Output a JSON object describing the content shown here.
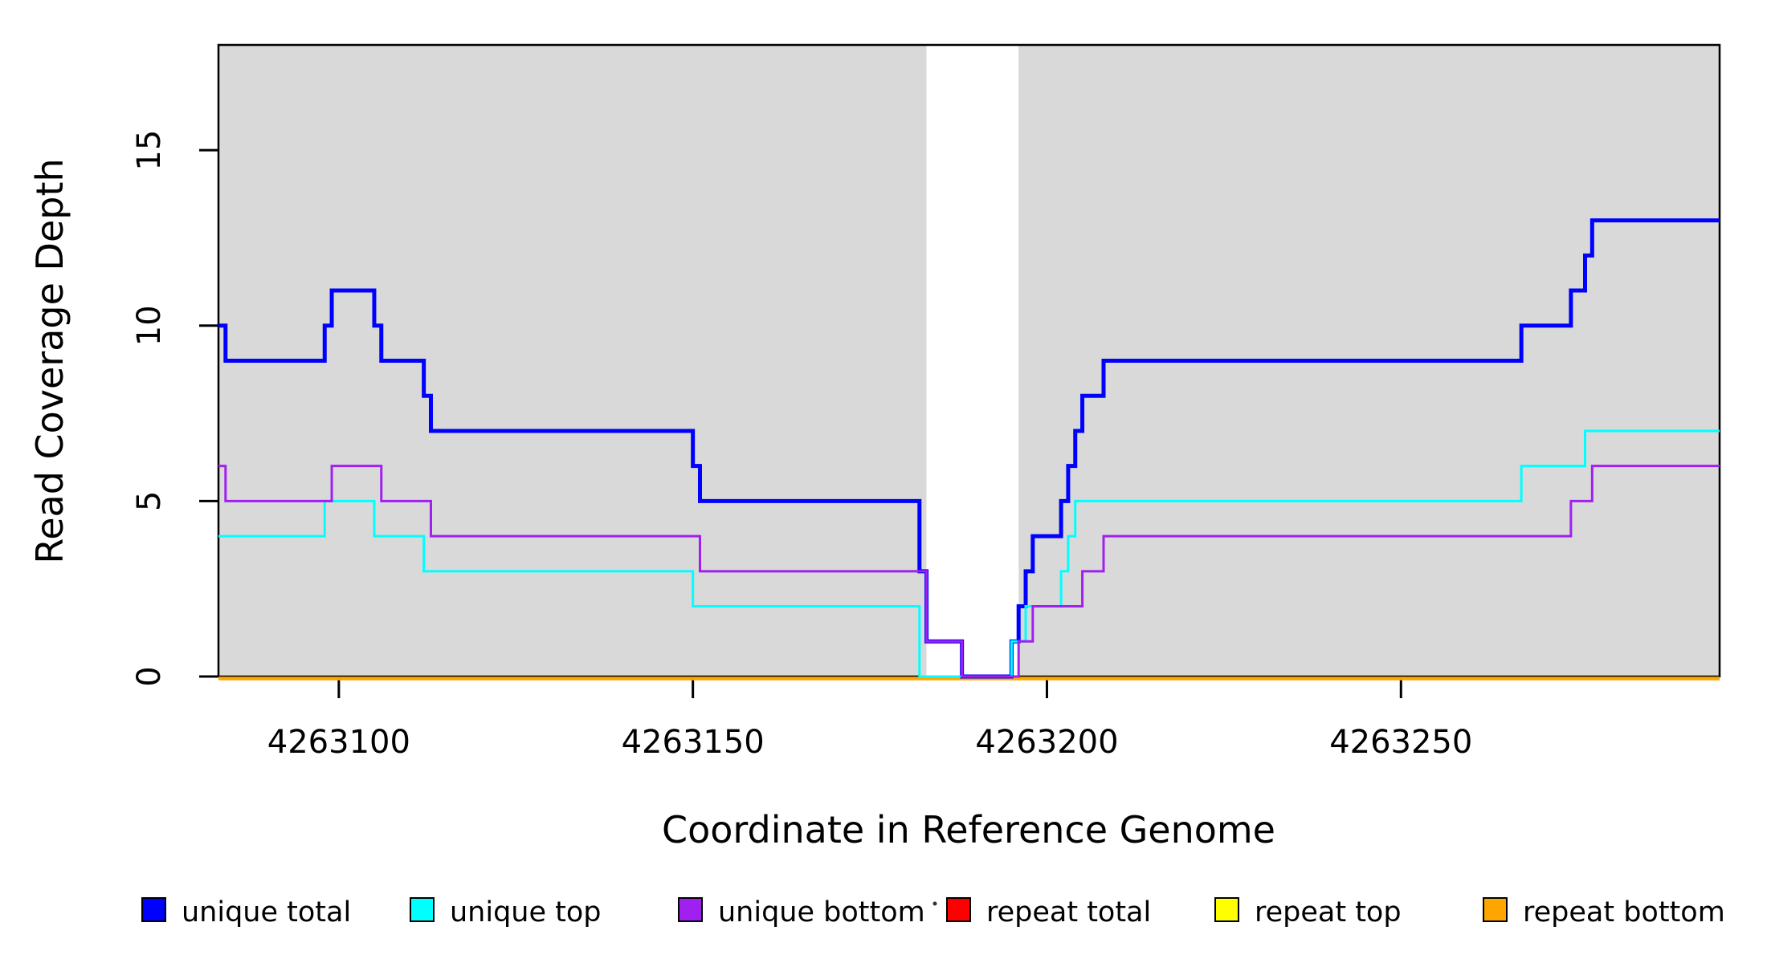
{
  "chart_data": {
    "type": "line",
    "subtype": "step-post",
    "title": "",
    "xlabel": "Coordinate in Reference Genome",
    "ylabel": "Read Coverage Depth",
    "xlim": [
      4263083,
      4263295
    ],
    "ylim": [
      0,
      18
    ],
    "x_ticks": [
      4263100,
      4263150,
      4263200,
      4263250
    ],
    "y_ticks": [
      0,
      5,
      10,
      15
    ],
    "grid": false,
    "legend_position": "bottom",
    "colors": {
      "shaded_region": "#d9d9d9",
      "gap_region": "#ffffff",
      "axis": "#000000",
      "unique_total": "#0000ff",
      "unique_top": "#00ffff",
      "unique_bottom": "#a020f0",
      "repeat_total": "#ff0000",
      "repeat_top": "#ffff00",
      "repeat_bottom": "#ffa500"
    },
    "background_regions": [
      {
        "name": "shaded-left",
        "x0": 4263083,
        "x1": 4263183,
        "color": "#d9d9d9"
      },
      {
        "name": "gap-white",
        "x0": 4263183,
        "x1": 4263196,
        "color": "#ffffff"
      },
      {
        "name": "shaded-right",
        "x0": 4263196,
        "x1": 4263295,
        "color": "#d9d9d9"
      }
    ],
    "series": [
      {
        "name": "repeat total",
        "color": "#ff0000",
        "width": 3,
        "offset_y": 2.5,
        "steps": [
          [
            4263083,
            0
          ]
        ]
      },
      {
        "name": "repeat top",
        "color": "#ffff00",
        "width": 3,
        "offset_y": 2.5,
        "steps": [
          [
            4263083,
            0
          ]
        ]
      },
      {
        "name": "repeat bottom",
        "color": "#ffa500",
        "width": 4.5,
        "offset_y": 2.5,
        "steps": [
          [
            4263083,
            0
          ]
        ]
      },
      {
        "name": "unique total",
        "color": "#0000ff",
        "width": 5,
        "offset_y": 0,
        "steps": [
          [
            4263083,
            10
          ],
          [
            4263084,
            9
          ],
          [
            4263098,
            10
          ],
          [
            4263099,
            11
          ],
          [
            4263105,
            10
          ],
          [
            4263106,
            9
          ],
          [
            4263112,
            8
          ],
          [
            4263113,
            7
          ],
          [
            4263150,
            6
          ],
          [
            4263151,
            5
          ],
          [
            4263182,
            3
          ],
          [
            4263183,
            1
          ],
          [
            4263188,
            0
          ],
          [
            4263195,
            1
          ],
          [
            4263196,
            2
          ],
          [
            4263197,
            3
          ],
          [
            4263198,
            4
          ],
          [
            4263202,
            5
          ],
          [
            4263203,
            6
          ],
          [
            4263204,
            7
          ],
          [
            4263205,
            8
          ],
          [
            4263208,
            9
          ],
          [
            4263267,
            10
          ],
          [
            4263274,
            11
          ],
          [
            4263276,
            12
          ],
          [
            4263277,
            13
          ]
        ]
      },
      {
        "name": "unique top",
        "color": "#00ffff",
        "width": 3,
        "offset_y": 0,
        "steps": [
          [
            4263083,
            4
          ],
          [
            4263098,
            5
          ],
          [
            4263105,
            4
          ],
          [
            4263112,
            3
          ],
          [
            4263150,
            2
          ],
          [
            4263182,
            0
          ],
          [
            4263195,
            1
          ],
          [
            4263197,
            2
          ],
          [
            4263202,
            3
          ],
          [
            4263203,
            4
          ],
          [
            4263204,
            5
          ],
          [
            4263267,
            6
          ],
          [
            4263276,
            7
          ]
        ]
      },
      {
        "name": "unique bottom",
        "color": "#a020f0",
        "width": 3,
        "offset_y": 0,
        "steps": [
          [
            4263083,
            6
          ],
          [
            4263084,
            5
          ],
          [
            4263099,
            6
          ],
          [
            4263106,
            5
          ],
          [
            4263113,
            4
          ],
          [
            4263151,
            3
          ],
          [
            4263183,
            1
          ],
          [
            4263188,
            0
          ],
          [
            4263196,
            1
          ],
          [
            4263198,
            2
          ],
          [
            4263205,
            3
          ],
          [
            4263208,
            4
          ],
          [
            4263274,
            5
          ],
          [
            4263277,
            6
          ]
        ]
      }
    ],
    "legend": [
      {
        "label": "unique total",
        "color": "#0000ff"
      },
      {
        "label": "unique top",
        "color": "#00ffff"
      },
      {
        "label": "unique bottom",
        "color": "#a020f0"
      },
      {
        "label": "repeat total",
        "color": "#ff0000"
      },
      {
        "label": "repeat top",
        "color": "#ffff00"
      },
      {
        "label": "repeat bottom",
        "color": "#ffa500"
      }
    ],
    "stray_mark": {
      "x": 1164,
      "y": 1126
    }
  }
}
